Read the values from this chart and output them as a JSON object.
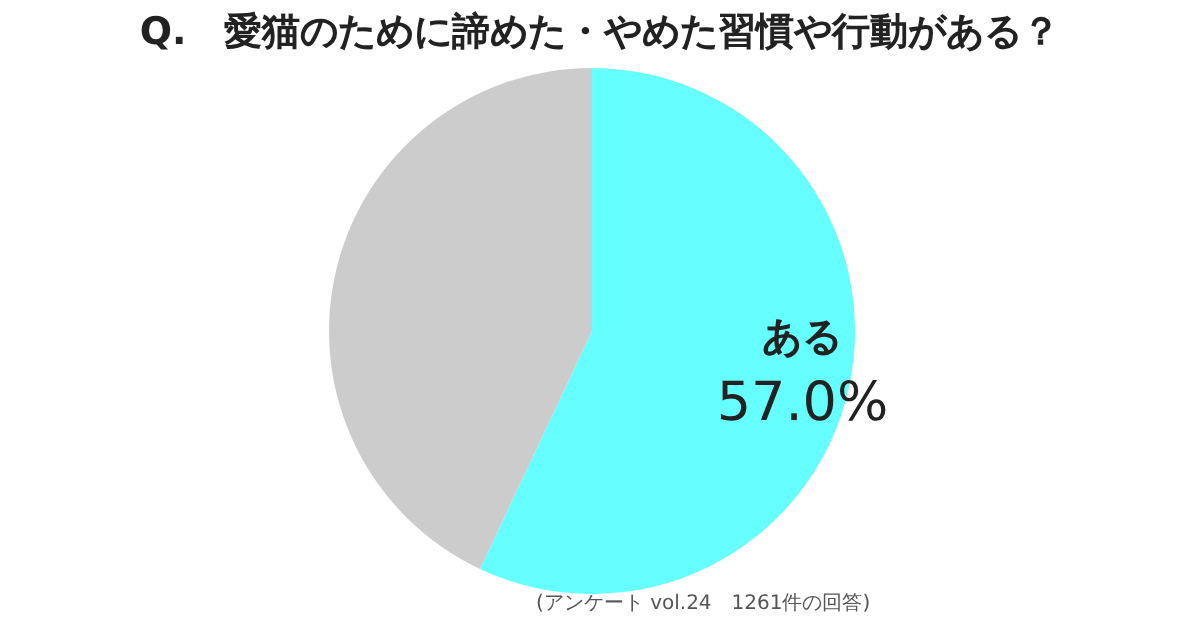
{
  "chart_data": {
    "type": "pie",
    "title": "Q.　愛猫のために諦めた・やめた習慣や行動がある？",
    "categories": [
      "ある",
      null
    ],
    "values": [
      57.0,
      43.0
    ],
    "colors": [
      "#66ffff",
      "#cccccc"
    ],
    "value_labels": [
      "57.0%",
      null
    ],
    "annotations": [
      "(アンケート vol.24　1261件の回答)"
    ],
    "legend": false
  }
}
